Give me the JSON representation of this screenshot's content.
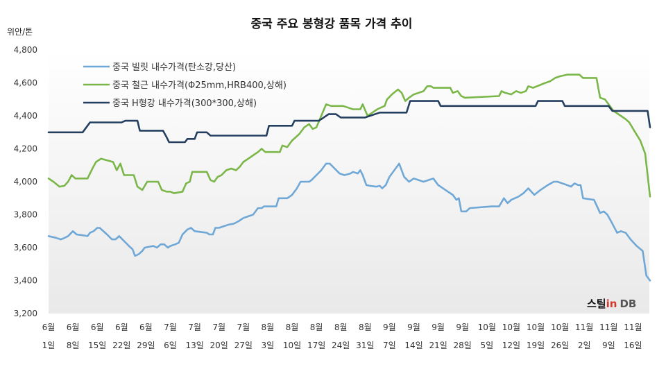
{
  "chart_data": {
    "type": "line",
    "title": "중국 주요 봉형강 품목 가격 추이",
    "ylabel": "위안/톤",
    "ylim": [
      3200,
      4800
    ],
    "yticks": [
      "3,200",
      "3,400",
      "3,600",
      "3,800",
      "4,000",
      "4,200",
      "4,400",
      "4,600",
      "4,800"
    ],
    "ytick_values": [
      3200,
      3400,
      3600,
      3800,
      4000,
      4200,
      4400,
      4600,
      4800
    ],
    "xticks": [
      {
        "month": "6월",
        "day": "1일"
      },
      {
        "month": "6월",
        "day": "8일"
      },
      {
        "month": "6월",
        "day": "15일"
      },
      {
        "month": "6월",
        "day": "22일"
      },
      {
        "month": "6월",
        "day": "29일"
      },
      {
        "month": "7월",
        "day": "6일"
      },
      {
        "month": "7월",
        "day": "13일"
      },
      {
        "month": "7월",
        "day": "20일"
      },
      {
        "month": "7월",
        "day": "27일"
      },
      {
        "month": "8월",
        "day": "3일"
      },
      {
        "month": "8월",
        "day": "10일"
      },
      {
        "month": "8월",
        "day": "17일"
      },
      {
        "month": "8월",
        "day": "24일"
      },
      {
        "month": "8월",
        "day": "31일"
      },
      {
        "month": "9월",
        "day": "7일"
      },
      {
        "month": "9월",
        "day": "14일"
      },
      {
        "month": "9월",
        "day": "21일"
      },
      {
        "month": "9월",
        "day": "28일"
      },
      {
        "month": "10월",
        "day": "5일"
      },
      {
        "month": "10월",
        "day": "12일"
      },
      {
        "month": "10월",
        "day": "19일"
      },
      {
        "month": "10월",
        "day": "26일"
      },
      {
        "month": "11월",
        "day": "2일"
      },
      {
        "month": "11월",
        "day": "9일"
      },
      {
        "month": "11월",
        "day": "16일"
      }
    ],
    "legend_position": "top-left",
    "grid": false,
    "series": [
      {
        "name": "중국 빌릿 내수가격(탄소강,당산)",
        "color": "#6fa8d6",
        "points": [
          [
            0,
            3670
          ],
          [
            0.3,
            3660
          ],
          [
            0.5,
            3650
          ],
          [
            0.6,
            3655
          ],
          [
            0.8,
            3670
          ],
          [
            1.0,
            3700
          ],
          [
            1.15,
            3680
          ],
          [
            1.4,
            3675
          ],
          [
            1.6,
            3670
          ],
          [
            1.7,
            3690
          ],
          [
            1.85,
            3700
          ],
          [
            2.0,
            3720
          ],
          [
            2.1,
            3720
          ],
          [
            2.4,
            3680
          ],
          [
            2.6,
            3650
          ],
          [
            2.75,
            3650
          ],
          [
            2.9,
            3670
          ],
          [
            3.1,
            3640
          ],
          [
            3.3,
            3610
          ],
          [
            3.45,
            3590
          ],
          [
            3.55,
            3550
          ],
          [
            3.7,
            3560
          ],
          [
            3.85,
            3580
          ],
          [
            3.95,
            3600
          ],
          [
            4.3,
            3610
          ],
          [
            4.45,
            3600
          ],
          [
            4.6,
            3620
          ],
          [
            4.75,
            3620
          ],
          [
            4.9,
            3600
          ],
          [
            5.0,
            3610
          ],
          [
            5.2,
            3620
          ],
          [
            5.35,
            3630
          ],
          [
            5.5,
            3680
          ],
          [
            5.7,
            3710
          ],
          [
            5.85,
            3720
          ],
          [
            6.0,
            3700
          ],
          [
            6.5,
            3690
          ],
          [
            6.6,
            3680
          ],
          [
            6.75,
            3680
          ],
          [
            6.85,
            3720
          ],
          [
            7.0,
            3720
          ],
          [
            7.2,
            3730
          ],
          [
            7.4,
            3740
          ],
          [
            7.6,
            3745
          ],
          [
            7.8,
            3760
          ],
          [
            8.0,
            3780
          ],
          [
            8.2,
            3790
          ],
          [
            8.4,
            3800
          ],
          [
            8.6,
            3840
          ],
          [
            8.75,
            3840
          ],
          [
            8.85,
            3850
          ],
          [
            9.35,
            3850
          ],
          [
            9.45,
            3900
          ],
          [
            9.8,
            3900
          ],
          [
            10.0,
            3920
          ],
          [
            10.2,
            3960
          ],
          [
            10.35,
            4000
          ],
          [
            10.7,
            4000
          ],
          [
            10.8,
            4010
          ],
          [
            11.0,
            4040
          ],
          [
            11.2,
            4070
          ],
          [
            11.4,
            4110
          ],
          [
            11.55,
            4110
          ],
          [
            11.75,
            4080
          ],
          [
            11.95,
            4050
          ],
          [
            12.15,
            4040
          ],
          [
            12.4,
            4050
          ],
          [
            12.5,
            4060
          ],
          [
            12.7,
            4050
          ],
          [
            12.8,
            4070
          ],
          [
            12.9,
            4040
          ],
          [
            13.05,
            3980
          ],
          [
            13.2,
            3975
          ],
          [
            13.45,
            3970
          ],
          [
            13.6,
            3975
          ],
          [
            13.7,
            3960
          ],
          [
            13.85,
            3980
          ],
          [
            14.0,
            4030
          ],
          [
            14.2,
            4070
          ],
          [
            14.4,
            4110
          ],
          [
            14.6,
            4030
          ],
          [
            14.8,
            4000
          ],
          [
            15.0,
            4020
          ],
          [
            15.4,
            4000
          ],
          [
            15.6,
            4010
          ],
          [
            15.8,
            4020
          ],
          [
            16.0,
            3980
          ],
          [
            16.3,
            3950
          ],
          [
            16.6,
            3920
          ],
          [
            16.75,
            3890
          ],
          [
            16.85,
            3900
          ],
          [
            16.95,
            3820
          ],
          [
            17.15,
            3820
          ],
          [
            17.3,
            3840
          ],
          [
            18.2,
            3850
          ],
          [
            18.5,
            3850
          ],
          [
            18.7,
            3900
          ],
          [
            18.85,
            3870
          ],
          [
            19.0,
            3890
          ],
          [
            19.3,
            3910
          ],
          [
            19.5,
            3930
          ],
          [
            19.7,
            3960
          ],
          [
            19.95,
            3920
          ],
          [
            20.2,
            3950
          ],
          [
            20.5,
            3980
          ],
          [
            20.75,
            4000
          ],
          [
            20.9,
            4000
          ],
          [
            21.3,
            3980
          ],
          [
            21.45,
            3970
          ],
          [
            21.6,
            3990
          ],
          [
            21.75,
            3980
          ],
          [
            21.85,
            3980
          ],
          [
            21.95,
            3900
          ],
          [
            22.4,
            3890
          ],
          [
            22.65,
            3810
          ],
          [
            22.8,
            3820
          ],
          [
            22.95,
            3800
          ],
          [
            23.1,
            3760
          ],
          [
            23.35,
            3690
          ],
          [
            23.5,
            3700
          ],
          [
            23.7,
            3690
          ],
          [
            23.9,
            3650
          ],
          [
            24.15,
            3610
          ],
          [
            24.4,
            3580
          ],
          [
            24.55,
            3430
          ],
          [
            24.7,
            3400
          ]
        ]
      },
      {
        "name": "중국 철근 내수가격(Φ25mm,HRB400,상해)",
        "color": "#7ab648",
        "points": [
          [
            0,
            4020
          ],
          [
            0.2,
            4000
          ],
          [
            0.45,
            3970
          ],
          [
            0.65,
            3975
          ],
          [
            0.8,
            4000
          ],
          [
            0.95,
            4040
          ],
          [
            1.1,
            4020
          ],
          [
            1.6,
            4020
          ],
          [
            1.8,
            4080
          ],
          [
            1.95,
            4120
          ],
          [
            2.15,
            4140
          ],
          [
            2.4,
            4130
          ],
          [
            2.65,
            4120
          ],
          [
            2.8,
            4070
          ],
          [
            2.95,
            4110
          ],
          [
            3.1,
            4040
          ],
          [
            3.5,
            4040
          ],
          [
            3.65,
            3970
          ],
          [
            3.85,
            3950
          ],
          [
            4.05,
            4000
          ],
          [
            4.5,
            4000
          ],
          [
            4.65,
            3950
          ],
          [
            4.85,
            3940
          ],
          [
            5.0,
            3940
          ],
          [
            5.15,
            3930
          ],
          [
            5.5,
            3940
          ],
          [
            5.65,
            3990
          ],
          [
            5.8,
            4000
          ],
          [
            5.9,
            4060
          ],
          [
            6.5,
            4060
          ],
          [
            6.65,
            4010
          ],
          [
            6.8,
            4000
          ],
          [
            6.95,
            4030
          ],
          [
            7.1,
            4040
          ],
          [
            7.3,
            4070
          ],
          [
            7.5,
            4080
          ],
          [
            7.7,
            4070
          ],
          [
            7.85,
            4090
          ],
          [
            8.0,
            4120
          ],
          [
            8.2,
            4140
          ],
          [
            8.4,
            4160
          ],
          [
            8.6,
            4180
          ],
          [
            8.75,
            4200
          ],
          [
            8.9,
            4180
          ],
          [
            9.1,
            4180
          ],
          [
            9.5,
            4180
          ],
          [
            9.6,
            4220
          ],
          [
            9.8,
            4210
          ],
          [
            10.0,
            4250
          ],
          [
            10.3,
            4290
          ],
          [
            10.5,
            4330
          ],
          [
            10.7,
            4350
          ],
          [
            10.85,
            4320
          ],
          [
            11.0,
            4330
          ],
          [
            11.2,
            4400
          ],
          [
            11.4,
            4470
          ],
          [
            11.6,
            4460
          ],
          [
            12.1,
            4460
          ],
          [
            12.5,
            4440
          ],
          [
            12.8,
            4440
          ],
          [
            12.9,
            4470
          ],
          [
            13.1,
            4400
          ],
          [
            13.3,
            4420
          ],
          [
            13.5,
            4440
          ],
          [
            13.65,
            4450
          ],
          [
            13.8,
            4460
          ],
          [
            13.9,
            4500
          ],
          [
            14.1,
            4530
          ],
          [
            14.35,
            4560
          ],
          [
            14.5,
            4540
          ],
          [
            14.65,
            4490
          ],
          [
            14.8,
            4510
          ],
          [
            15.0,
            4530
          ],
          [
            15.2,
            4540
          ],
          [
            15.4,
            4550
          ],
          [
            15.55,
            4580
          ],
          [
            15.7,
            4580
          ],
          [
            15.8,
            4570
          ],
          [
            16.5,
            4570
          ],
          [
            16.6,
            4540
          ],
          [
            16.8,
            4550
          ],
          [
            16.95,
            4520
          ],
          [
            17.1,
            4510
          ],
          [
            18.5,
            4520
          ],
          [
            18.6,
            4550
          ],
          [
            18.75,
            4540
          ],
          [
            19.0,
            4530
          ],
          [
            19.2,
            4550
          ],
          [
            19.4,
            4540
          ],
          [
            19.6,
            4550
          ],
          [
            19.7,
            4580
          ],
          [
            19.9,
            4570
          ],
          [
            20.4,
            4600
          ],
          [
            20.6,
            4610
          ],
          [
            20.8,
            4630
          ],
          [
            21.0,
            4640
          ],
          [
            21.3,
            4650
          ],
          [
            21.8,
            4650
          ],
          [
            21.95,
            4630
          ],
          [
            22.5,
            4630
          ],
          [
            22.65,
            4510
          ],
          [
            22.85,
            4500
          ],
          [
            23.0,
            4470
          ],
          [
            23.2,
            4430
          ],
          [
            23.5,
            4400
          ],
          [
            23.7,
            4380
          ],
          [
            23.85,
            4360
          ],
          [
            24.05,
            4310
          ],
          [
            24.3,
            4250
          ],
          [
            24.5,
            4170
          ],
          [
            24.7,
            3910
          ]
        ]
      },
      {
        "name": "중국 H형강 내수가격(300*300,상해)",
        "color": "#243f60",
        "points": [
          [
            0,
            4300
          ],
          [
            1.4,
            4300
          ],
          [
            1.7,
            4360
          ],
          [
            3.0,
            4360
          ],
          [
            3.15,
            4370
          ],
          [
            3.65,
            4370
          ],
          [
            3.75,
            4310
          ],
          [
            4.7,
            4310
          ],
          [
            4.85,
            4270
          ],
          [
            4.95,
            4240
          ],
          [
            5.6,
            4240
          ],
          [
            5.7,
            4260
          ],
          [
            6.0,
            4260
          ],
          [
            6.1,
            4300
          ],
          [
            6.5,
            4300
          ],
          [
            6.65,
            4280
          ],
          [
            8.95,
            4280
          ],
          [
            9.05,
            4340
          ],
          [
            10.0,
            4340
          ],
          [
            10.1,
            4370
          ],
          [
            11.1,
            4370
          ],
          [
            11.3,
            4390
          ],
          [
            11.5,
            4410
          ],
          [
            11.8,
            4410
          ],
          [
            12.0,
            4390
          ],
          [
            13.0,
            4390
          ],
          [
            13.2,
            4400
          ],
          [
            13.6,
            4420
          ],
          [
            14.7,
            4420
          ],
          [
            14.85,
            4490
          ],
          [
            16.0,
            4490
          ],
          [
            16.1,
            4460
          ],
          [
            20.0,
            4460
          ],
          [
            20.1,
            4490
          ],
          [
            21.1,
            4490
          ],
          [
            21.2,
            4460
          ],
          [
            23.0,
            4460
          ],
          [
            23.15,
            4430
          ],
          [
            24.6,
            4430
          ],
          [
            24.7,
            4330
          ]
        ]
      }
    ]
  },
  "logo": {
    "prefix": "스틸",
    "middle": "in",
    "suffix": "DB"
  }
}
